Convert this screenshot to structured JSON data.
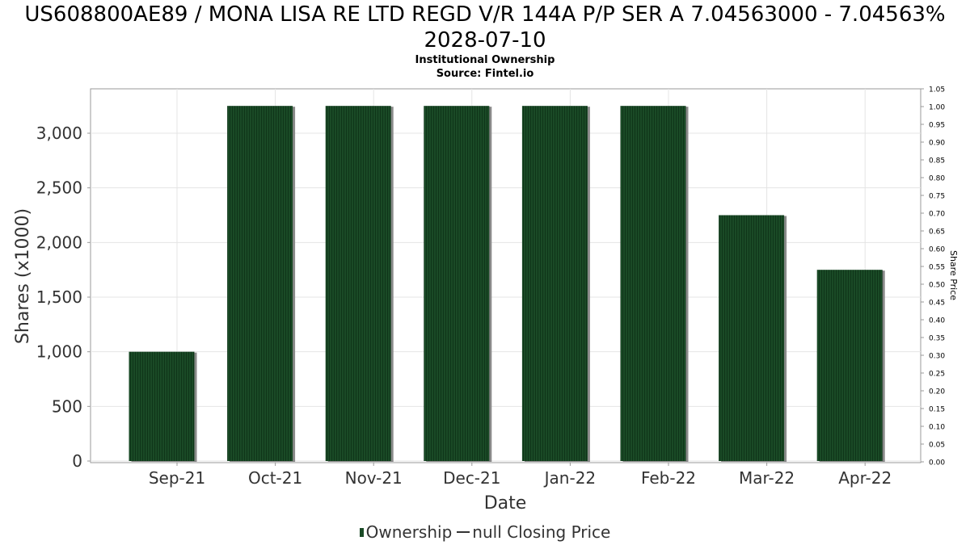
{
  "header": {
    "title": "US608800AE89 / MONA LISA RE LTD REGD V/R 144A P/P SER A 7.04563000 - 7.04563% 2028-07-10",
    "subtitle1": "Institutional Ownership",
    "subtitle2": "Source: Fintel.io"
  },
  "legend": {
    "ownership_label": "Ownership",
    "price_label": "null Closing Price"
  },
  "colors": {
    "bar": "#1a4a26",
    "bar_stripe": "#0f3519",
    "bar_shadow": "#8a8a8a",
    "grid": "#e4e4e4",
    "axis": "#999999"
  },
  "chart_data": {
    "type": "bar",
    "categories": [
      "Sep-21",
      "Oct-21",
      "Nov-21",
      "Dec-21",
      "Jan-22",
      "Feb-22",
      "Mar-22",
      "Apr-22"
    ],
    "series": [
      {
        "name": "Ownership",
        "values": [
          1000,
          3250,
          3250,
          3250,
          3250,
          3250,
          2250,
          1750
        ]
      }
    ],
    "xlabel": "Date",
    "ylabel": "Shares (x1000)",
    "ylim": [
      0,
      3400
    ],
    "yticks": [
      0,
      500,
      1000,
      1500,
      2000,
      2500,
      3000
    ],
    "ytick_labels": [
      "0",
      "500",
      "1,000",
      "1,500",
      "2,000",
      "2,500",
      "3,000"
    ],
    "y2label": "Share Price",
    "y2lim": [
      0,
      1.05
    ],
    "y2ticks": [
      "0.00",
      "0.05",
      "0.10",
      "0.15",
      "0.20",
      "0.25",
      "0.30",
      "0.35",
      "0.40",
      "0.45",
      "0.50",
      "0.55",
      "0.60",
      "0.65",
      "0.70",
      "0.75",
      "0.80",
      "0.85",
      "0.90",
      "0.95",
      "1.00",
      "1.05"
    ],
    "grid": true,
    "legend_position": "bottom"
  }
}
